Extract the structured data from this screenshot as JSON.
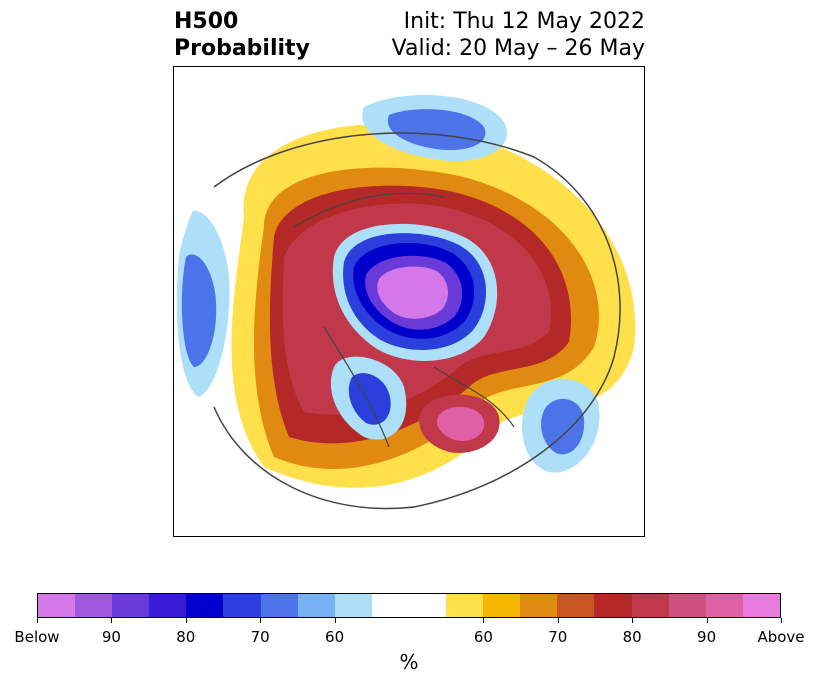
{
  "header": {
    "title_line1": "H500",
    "title_line2": "Probability",
    "init": "Init: Thu 12 May 2022",
    "valid": "Valid: 20 May – 26 May"
  },
  "colorbar": {
    "colors": [
      "#d477e8",
      "#a058e0",
      "#6a3ad8",
      "#3b1cd6",
      "#0000cd",
      "#2a3fdc",
      "#4c74e8",
      "#76b2f3",
      "#addff8",
      "#ffffff",
      "#ffffff",
      "#ffe04a",
      "#f5b800",
      "#e08a12",
      "#c8561e",
      "#b42828",
      "#c0384a",
      "#d05080",
      "#e060a8",
      "#e87ae0"
    ],
    "ticks": [
      "Below",
      "90",
      "80",
      "70",
      "60",
      "60",
      "70",
      "80",
      "90",
      "Above"
    ],
    "units": "%"
  },
  "map": {
    "projection": "north-polar-stereographic",
    "anomalies": [
      {
        "region": "polar-vortex-arctic",
        "sign": "below",
        "level": "Below"
      },
      {
        "region": "ring-eurasia-north-atlantic",
        "sign": "above",
        "level": "90"
      },
      {
        "region": "northeast-north-america",
        "sign": "above",
        "level": "90"
      },
      {
        "region": "north-pacific",
        "sign": "below",
        "level": "80"
      },
      {
        "region": "western-north-america",
        "sign": "below",
        "level": "80"
      },
      {
        "region": "southern-asia",
        "sign": "below",
        "level": "80"
      }
    ]
  }
}
